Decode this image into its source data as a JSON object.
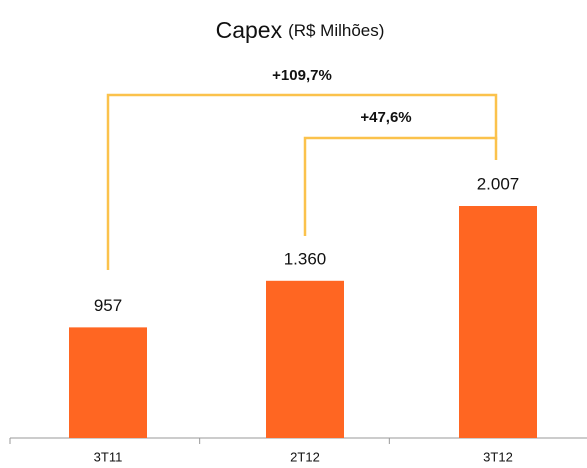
{
  "chart_data": {
    "type": "bar",
    "title": "Capex",
    "subtitle": "(R$ Milhões)",
    "categories": [
      "3T11",
      "2T12",
      "3T12"
    ],
    "values": [
      957,
      1360,
      2007
    ],
    "value_labels": [
      "957",
      "1.360",
      "2.007"
    ],
    "color": "#ff6622",
    "annotations": [
      "+109,7%",
      "+47,6%"
    ]
  }
}
